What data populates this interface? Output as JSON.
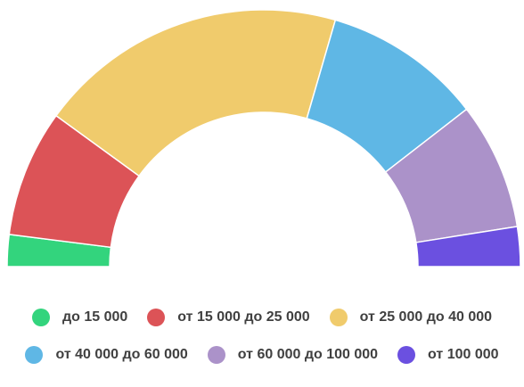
{
  "chart_data": {
    "type": "pie",
    "variant": "semi-donut",
    "categories": [
      "до 15 000",
      "от 15 000 до 25 000",
      "от 25 000 до 40 000",
      "от 40 000 до 60 000",
      "от 60 000 до 100 000",
      "от 100 000"
    ],
    "values": [
      4,
      16,
      39,
      20,
      16,
      5
    ],
    "colors": [
      "#33d47d",
      "#dc5357",
      "#f0cb6c",
      "#5fb7e5",
      "#ab92c9",
      "#6b50e0"
    ],
    "legend": "bottom",
    "title": ""
  },
  "legend": {
    "row1": [
      {
        "label": "до 15 000",
        "color": "#33d47d"
      },
      {
        "label": "от 15 000 до 25 000",
        "color": "#dc5357"
      },
      {
        "label": "от 25 000 до 40 000",
        "color": "#f0cb6c"
      }
    ],
    "row2": [
      {
        "label": "от 40 000 до 60 000",
        "color": "#5fb7e5"
      },
      {
        "label": "от 60 000 до 100 000",
        "color": "#ab92c9"
      },
      {
        "label": "от 100 000",
        "color": "#6b50e0"
      }
    ]
  }
}
